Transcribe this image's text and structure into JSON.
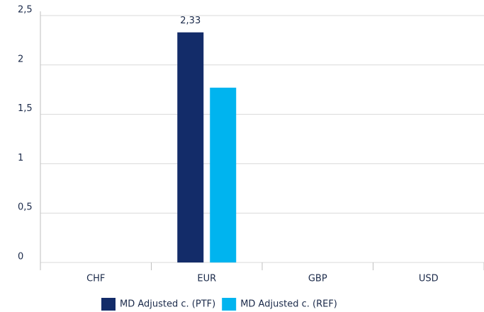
{
  "chart_data": {
    "type": "bar",
    "categories": [
      "CHF",
      "EUR",
      "GBP",
      "USD"
    ],
    "series": [
      {
        "name": "MD Adjusted c. (PTF)",
        "color": "#132c69",
        "values": [
          null,
          2.33,
          null,
          null
        ],
        "value_labels": [
          null,
          "2,33",
          null,
          null
        ]
      },
      {
        "name": "MD Adjusted c. (REF)",
        "color": "#00b4ef",
        "values": [
          null,
          1.77,
          null,
          null
        ]
      }
    ],
    "ylim": [
      0,
      2.5
    ],
    "yticks": [
      0,
      {
        "value": 0.5,
        "label": "0,5"
      },
      1,
      {
        "value": 1.5,
        "label": "1,5"
      },
      2,
      {
        "value": 2.5,
        "label": "2,5"
      }
    ],
    "grid": true,
    "legend": "bottom"
  }
}
